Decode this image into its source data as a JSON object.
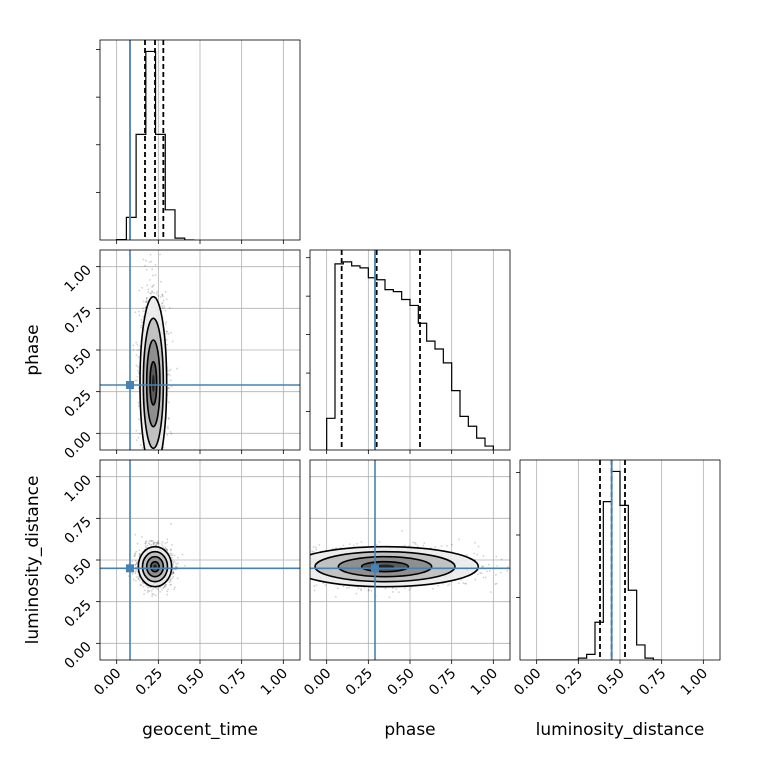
{
  "chart_data": {
    "type": "corner",
    "parameters": [
      "geocent_time",
      "phase",
      "luminosity_distance"
    ],
    "injection_values": {
      "geocent_time": 0.08,
      "phase": 0.29,
      "luminosity_distance": 0.45
    },
    "axis_range": [
      -0.1,
      1.1
    ],
    "tick_values": [
      0.0,
      0.25,
      0.5,
      0.75,
      1.0
    ],
    "tick_labels": [
      "0.00",
      "0.25",
      "0.50",
      "0.75",
      "1.00"
    ],
    "grid": true,
    "colors": {
      "truth": "#4682b4",
      "hist": "#000000",
      "quantile": "#000000"
    },
    "marginals": [
      {
        "parameter": "geocent_time",
        "bin_edges": [
          0.0,
          0.0583,
          0.1167,
          0.175,
          0.2333,
          0.2917,
          0.35,
          0.4083,
          0.4667
        ],
        "counts": [
          0.2,
          12,
          56,
          100,
          56,
          16,
          1,
          0
        ],
        "ymax": 105,
        "quantiles": [
          0.17,
          0.23,
          0.28
        ]
      },
      {
        "parameter": "phase",
        "bin_edges": [
          0.0,
          0.05,
          0.1,
          0.15,
          0.2,
          0.25,
          0.3,
          0.35,
          0.4,
          0.45,
          0.5,
          0.55,
          0.6,
          0.65,
          0.7,
          0.75,
          0.8,
          0.85,
          0.9,
          0.95,
          1.0
        ],
        "counts": [
          16,
          94,
          95,
          93,
          92,
          87,
          86,
          81,
          80,
          76,
          73,
          64,
          55,
          51,
          44,
          30,
          17,
          12,
          6,
          2
        ],
        "ymax": 100,
        "quantiles": [
          0.09,
          0.3,
          0.56
        ]
      },
      {
        "parameter": "luminosity_distance",
        "bin_edges": [
          0.0,
          0.05,
          0.1,
          0.15,
          0.2,
          0.25,
          0.3,
          0.35,
          0.4,
          0.45,
          0.5,
          0.55,
          0.6,
          0.65,
          0.7,
          0.75
        ],
        "counts": [
          0,
          0,
          0,
          0,
          0,
          1,
          3,
          20,
          84,
          100,
          82,
          37,
          8,
          1,
          0
        ],
        "ymax": 105,
        "quantiles": [
          0.38,
          0.45,
          0.53
        ]
      }
    ],
    "contours_2d": [
      {
        "x": "geocent_time",
        "y": "phase",
        "center": [
          0.22,
          0.3
        ],
        "spread": [
          0.04,
          0.26
        ]
      },
      {
        "x": "geocent_time",
        "y": "luminosity_distance",
        "center": [
          0.23,
          0.46
        ],
        "spread": [
          0.05,
          0.06
        ]
      },
      {
        "x": "phase",
        "y": "luminosity_distance",
        "center": [
          0.35,
          0.46
        ],
        "spread": [
          0.28,
          0.06
        ]
      }
    ]
  }
}
